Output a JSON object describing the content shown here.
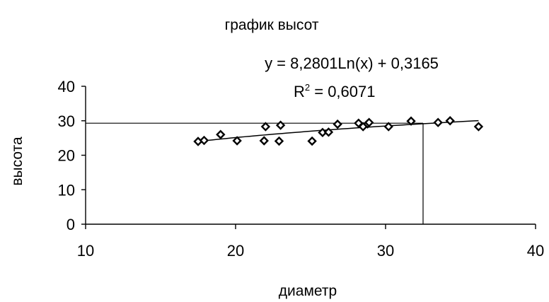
{
  "chart_data": {
    "type": "scatter",
    "title": "график высот",
    "xlabel": "диаметр",
    "ylabel": "высота",
    "xlim": [
      10,
      40
    ],
    "ylim": [
      0,
      40
    ],
    "x_ticks": [
      10,
      20,
      30,
      40
    ],
    "y_ticks": [
      0,
      10,
      20,
      30,
      40
    ],
    "grid": false,
    "legend": "none",
    "trendline": {
      "type": "logarithmic",
      "a": 8.2801,
      "b": 0.3165,
      "x_range": [
        17.5,
        36.2
      ],
      "equation_label": "y = 8,2801Ln(x) + 0,3165",
      "r2_prefix": "R",
      "r2_sup": "2",
      "r2_value": " = 0,6071"
    },
    "guide": {
      "x": 32.5,
      "y": 29.3
    },
    "points": [
      {
        "x": 17.5,
        "y": 24
      },
      {
        "x": 17.9,
        "y": 24.3
      },
      {
        "x": 19.0,
        "y": 26
      },
      {
        "x": 20.1,
        "y": 24.2
      },
      {
        "x": 21.9,
        "y": 24.2
      },
      {
        "x": 22.0,
        "y": 28.3
      },
      {
        "x": 22.9,
        "y": 24.1
      },
      {
        "x": 23.0,
        "y": 28.7
      },
      {
        "x": 25.1,
        "y": 24.1
      },
      {
        "x": 25.8,
        "y": 26.6
      },
      {
        "x": 26.2,
        "y": 26.7
      },
      {
        "x": 26.8,
        "y": 29
      },
      {
        "x": 28.2,
        "y": 29.3
      },
      {
        "x": 28.5,
        "y": 28.3
      },
      {
        "x": 28.8,
        "y": 29.1
      },
      {
        "x": 28.9,
        "y": 29.5
      },
      {
        "x": 30.2,
        "y": 28.3
      },
      {
        "x": 31.7,
        "y": 29.9
      },
      {
        "x": 33.5,
        "y": 29.5
      },
      {
        "x": 34.3,
        "y": 30
      },
      {
        "x": 36.2,
        "y": 28.3
      }
    ]
  }
}
